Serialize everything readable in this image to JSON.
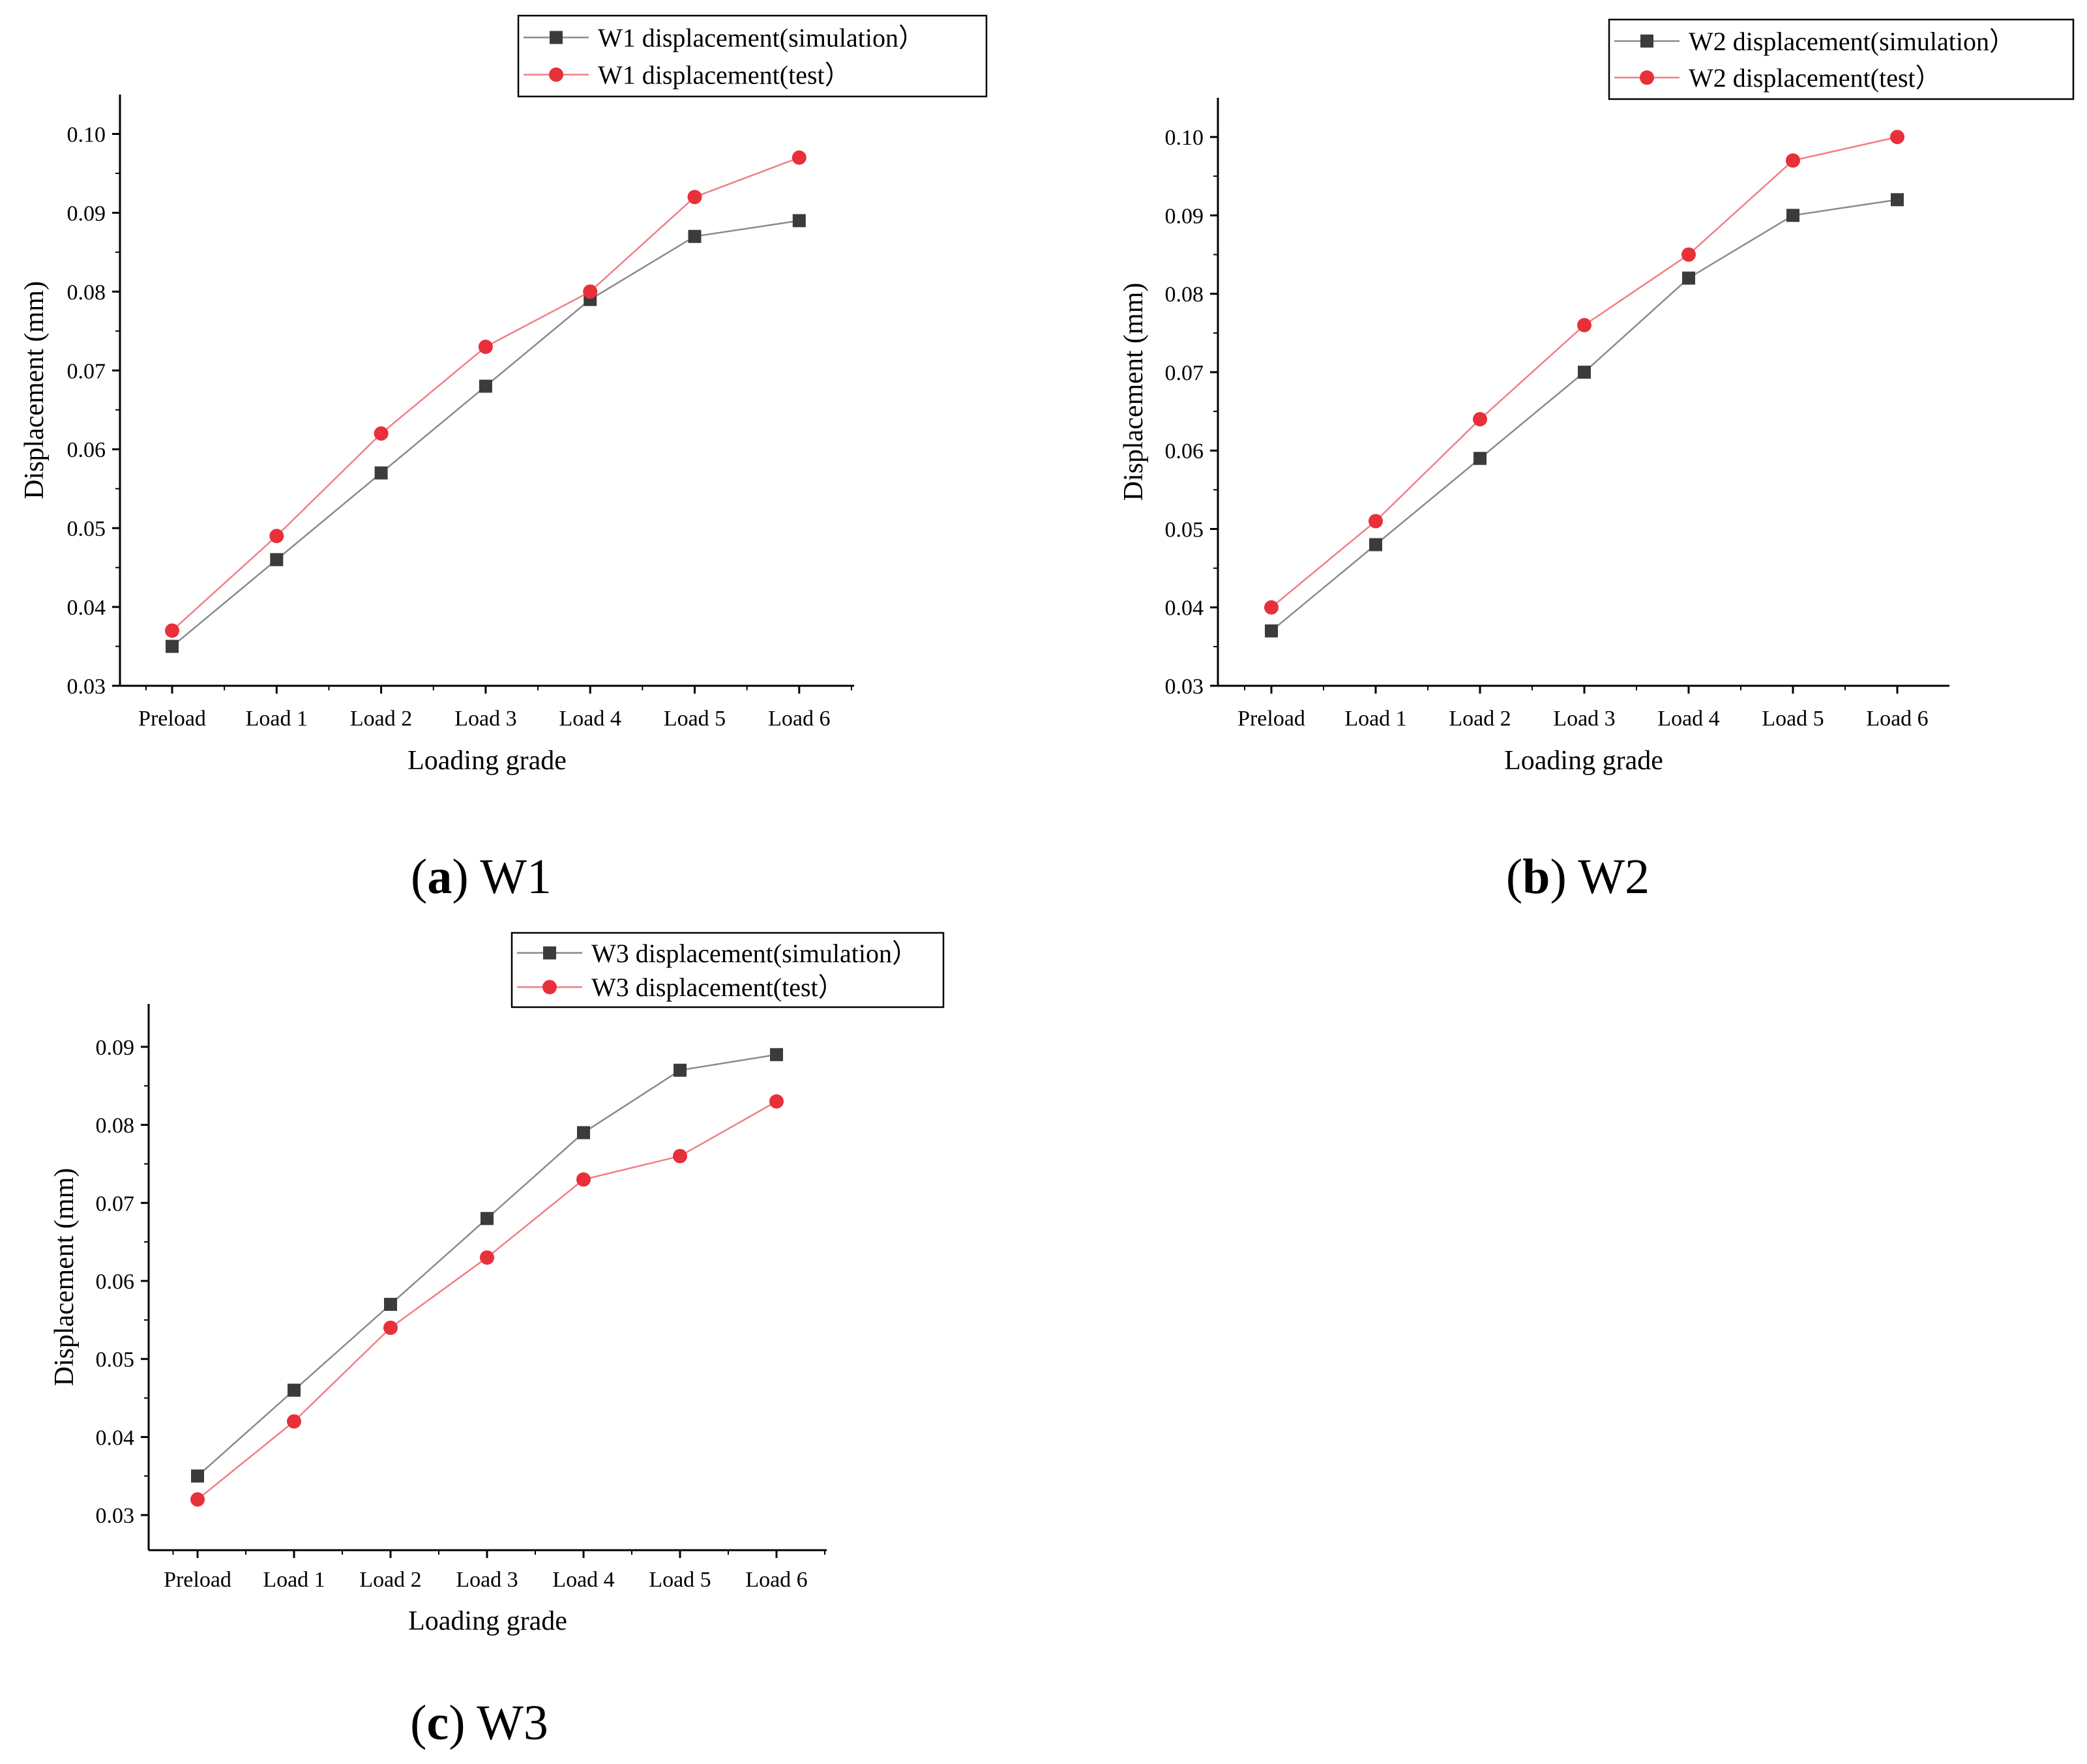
{
  "colors": {
    "simulation": "#3b3b3b",
    "test": "#e8303a",
    "simulation_line": "#8a8a8a",
    "test_line": "#f07f85"
  },
  "chart_data": [
    {
      "id": "w1",
      "type": "line",
      "caption": {
        "letter": "a",
        "text": "W1"
      },
      "categories": [
        "Preload",
        "Load 1",
        "Load 2",
        "Load 3",
        "Load 4",
        "Load 5",
        "Load 6"
      ],
      "xlabel": "Loading grade",
      "ylabel": "Displacement (mm)",
      "ylim": [
        0.03,
        0.105
      ],
      "yticks": [
        "0.03",
        "0.04",
        "0.05",
        "0.06",
        "0.07",
        "0.08",
        "0.09",
        "0.10"
      ],
      "legend_position": "top-right",
      "series": [
        {
          "name": "W1 displacement(simulation）",
          "marker": "square",
          "values": [
            0.035,
            0.046,
            0.057,
            0.068,
            0.079,
            0.087,
            0.089
          ]
        },
        {
          "name": "W1 displacement(test）",
          "marker": "circle",
          "values": [
            0.037,
            0.049,
            0.062,
            0.073,
            0.08,
            0.092,
            0.097
          ]
        }
      ]
    },
    {
      "id": "w2",
      "type": "line",
      "caption": {
        "letter": "b",
        "text": "W2"
      },
      "categories": [
        "Preload",
        "Load 1",
        "Load 2",
        "Load 3",
        "Load 4",
        "Load 5",
        "Load 6"
      ],
      "xlabel": "Loading grade",
      "ylabel": "Displacement (mm)",
      "ylim": [
        0.03,
        0.105
      ],
      "yticks": [
        "0.03",
        "0.04",
        "0.05",
        "0.06",
        "0.07",
        "0.08",
        "0.09",
        "0.10"
      ],
      "legend_position": "top-right",
      "series": [
        {
          "name": "W2 displacement(simulation）",
          "marker": "square",
          "values": [
            0.037,
            0.048,
            0.059,
            0.07,
            0.082,
            0.09,
            0.092
          ]
        },
        {
          "name": "W2 displacement(test）",
          "marker": "circle",
          "values": [
            0.04,
            0.051,
            0.064,
            0.076,
            0.085,
            0.097,
            0.1
          ]
        }
      ]
    },
    {
      "id": "w3",
      "type": "line",
      "caption": {
        "letter": "c",
        "text": "W3"
      },
      "categories": [
        "Preload",
        "Load 1",
        "Load 2",
        "Load 3",
        "Load 4",
        "Load 5",
        "Load 6"
      ],
      "xlabel": "Loading grade",
      "ylabel": "Displacement (mm)",
      "ylim": [
        0.0255,
        0.0955
      ],
      "yticks": [
        "0.03",
        "0.04",
        "0.05",
        "0.06",
        "0.07",
        "0.08",
        "0.09"
      ],
      "legend_position": "top-right",
      "series": [
        {
          "name": "W3 displacement(simulation）",
          "marker": "square",
          "values": [
            0.035,
            0.046,
            0.057,
            0.068,
            0.079,
            0.087,
            0.089
          ]
        },
        {
          "name": "W3 displacement(test）",
          "marker": "circle",
          "values": [
            0.032,
            0.042,
            0.054,
            0.063,
            0.073,
            0.076,
            0.083
          ]
        }
      ]
    }
  ]
}
